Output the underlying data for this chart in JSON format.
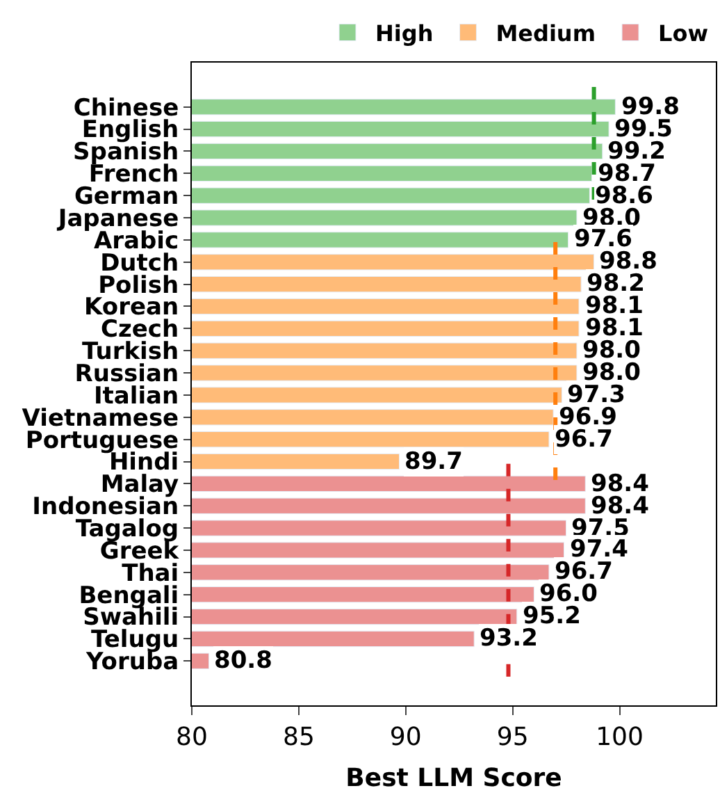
{
  "chart_data": {
    "type": "bar",
    "orientation": "horizontal",
    "xlabel": "Best LLM Score",
    "categories": [
      "Chinese",
      "English",
      "Spanish",
      "French",
      "German",
      "Japanese",
      "Arabic",
      "Dutch",
      "Polish",
      "Korean",
      "Czech",
      "Turkish",
      "Russian",
      "Italian",
      "Vietnamese",
      "Portuguese",
      "Hindi",
      "Malay",
      "Indonesian",
      "Tagalog",
      "Greek",
      "Thai",
      "Bengali",
      "Swahili",
      "Telugu",
      "Yoruba"
    ],
    "series": [
      {
        "name": "High",
        "color": "#90d18f",
        "values": [
          99.8,
          99.5,
          99.2,
          98.7,
          98.6,
          98.0,
          97.6,
          null,
          null,
          null,
          null,
          null,
          null,
          null,
          null,
          null,
          null,
          null,
          null,
          null,
          null,
          null,
          null,
          null,
          null,
          null
        ],
        "value_labels": [
          "99.8",
          "99.5",
          "99.2",
          "98.7",
          "98.6",
          "98.0",
          "97.6",
          null,
          null,
          null,
          null,
          null,
          null,
          null,
          null,
          null,
          null,
          null,
          null,
          null,
          null,
          null,
          null,
          null,
          null,
          null
        ]
      },
      {
        "name": "Medium",
        "color": "#ffbb78",
        "values": [
          null,
          null,
          null,
          null,
          null,
          null,
          null,
          98.8,
          98.2,
          98.1,
          98.1,
          98.0,
          98.0,
          97.3,
          96.9,
          96.7,
          89.7,
          null,
          null,
          null,
          null,
          null,
          null,
          null,
          null,
          null
        ],
        "value_labels": [
          null,
          null,
          null,
          null,
          null,
          null,
          null,
          "98.8",
          "98.2",
          "98.1",
          "98.1",
          "98.0",
          "98.0",
          "97.3",
          "96.9",
          "96.7",
          "89.7",
          null,
          null,
          null,
          null,
          null,
          null,
          null,
          null,
          null
        ]
      },
      {
        "name": "Low",
        "color": "#eb9191",
        "values": [
          null,
          null,
          null,
          null,
          null,
          null,
          null,
          null,
          null,
          null,
          null,
          null,
          null,
          null,
          null,
          null,
          null,
          98.4,
          98.4,
          97.5,
          97.4,
          96.7,
          96.0,
          95.2,
          93.2,
          80.8
        ],
        "value_labels": [
          null,
          null,
          null,
          null,
          null,
          null,
          null,
          null,
          null,
          null,
          null,
          null,
          null,
          null,
          null,
          null,
          null,
          "98.4",
          "98.4",
          "97.5",
          "97.4",
          "96.7",
          "96.0",
          "95.2",
          "93.2",
          "80.8"
        ]
      }
    ],
    "ref_lines": [
      {
        "axis": "x",
        "value": 98.8,
        "color": "#2ca02c",
        "line_style": "dashed"
      },
      {
        "axis": "x",
        "value": 97.0,
        "color": "#ff7f0e",
        "line_style": "dashed"
      },
      {
        "axis": "x",
        "value": 94.8,
        "color": "#d62728",
        "line_style": "dashed"
      }
    ],
    "xlim": [
      80,
      104.5
    ],
    "xticks": [
      80,
      85,
      90,
      95,
      100
    ],
    "legend": "top"
  }
}
